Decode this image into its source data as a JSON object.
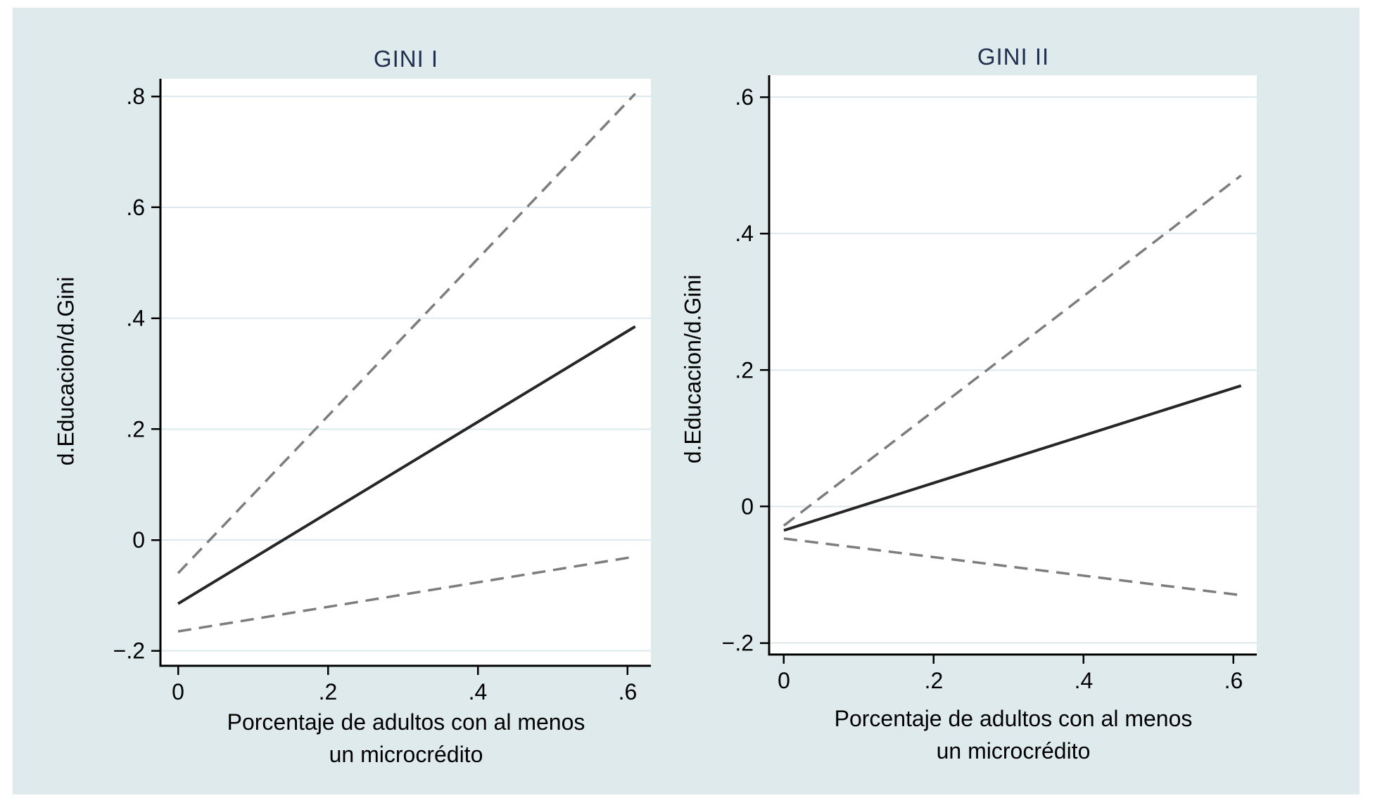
{
  "figure": {
    "description": "Two-panel marginal effects line chart",
    "colors": {
      "canvas_bg": "#dfeaed",
      "plot_bg": "#ffffff",
      "gridline": "#dce9ee",
      "axis": "#000000",
      "title_text": "#22304f",
      "tick_text": "#000000",
      "solid_line": "#262626",
      "dashed_line": "#7d7d7d"
    }
  },
  "chart_data": [
    {
      "type": "line",
      "title": "GINI I",
      "ylabel": "d.Educacion/d.Gini",
      "xlabel_line1": "Porcentaje de adultos con al menos",
      "xlabel_line2": "un microcrédito",
      "xlim": [
        -0.0235,
        0.631
      ],
      "ylim": [
        -0.227,
        0.832
      ],
      "x_ticks": [
        0,
        0.2,
        0.4,
        0.6
      ],
      "x_tick_labels": [
        "0",
        ".2",
        ".4",
        ".6"
      ],
      "y_ticks": [
        -0.2,
        0,
        0.2,
        0.4,
        0.6,
        0.8
      ],
      "y_tick_labels": [
        "−.2",
        "0",
        ".2",
        ".4",
        ".6",
        ".8"
      ],
      "grid": "horizontal-gridlines-on",
      "legend": "none",
      "series": [
        {
          "name": "marginal-effect",
          "style": "solid",
          "color": "#262626",
          "x": [
            0,
            0.61
          ],
          "y": [
            -0.115,
            0.385
          ]
        },
        {
          "name": "upper-confidence-bound",
          "style": "dashed",
          "color": "#7d7d7d",
          "x": [
            0,
            0.61
          ],
          "y": [
            -0.06,
            0.805
          ]
        },
        {
          "name": "lower-confidence-bound",
          "style": "dashed",
          "color": "#7d7d7d",
          "x": [
            0,
            0.61
          ],
          "y": [
            -0.165,
            -0.03
          ]
        }
      ]
    },
    {
      "type": "line",
      "title": "GINI II",
      "ylabel": "d.Educacion/d.Gini",
      "xlabel_line1": "Porcentaje de adultos con al menos",
      "xlabel_line2": "un microcrédito",
      "xlim": [
        -0.0197,
        0.631
      ],
      "ylim": [
        -0.217,
        0.632
      ],
      "x_ticks": [
        0,
        0.2,
        0.4,
        0.6
      ],
      "x_tick_labels": [
        "0",
        ".2",
        ".4",
        ".6"
      ],
      "y_ticks": [
        -0.2,
        0,
        0.2,
        0.4,
        0.6
      ],
      "y_tick_labels": [
        "−.2",
        "0",
        ".2",
        ".4",
        ".6"
      ],
      "grid": "horizontal-gridlines-on",
      "legend": "none",
      "series": [
        {
          "name": "marginal-effect",
          "style": "solid",
          "color": "#262626",
          "x": [
            0,
            0.61
          ],
          "y": [
            -0.035,
            0.177
          ]
        },
        {
          "name": "upper-confidence-bound",
          "style": "dashed",
          "color": "#7d7d7d",
          "x": [
            0,
            0.61
          ],
          "y": [
            -0.028,
            0.485
          ]
        },
        {
          "name": "lower-confidence-bound",
          "style": "dashed",
          "color": "#7d7d7d",
          "x": [
            0,
            0.61
          ],
          "y": [
            -0.047,
            -0.13
          ]
        }
      ]
    }
  ]
}
